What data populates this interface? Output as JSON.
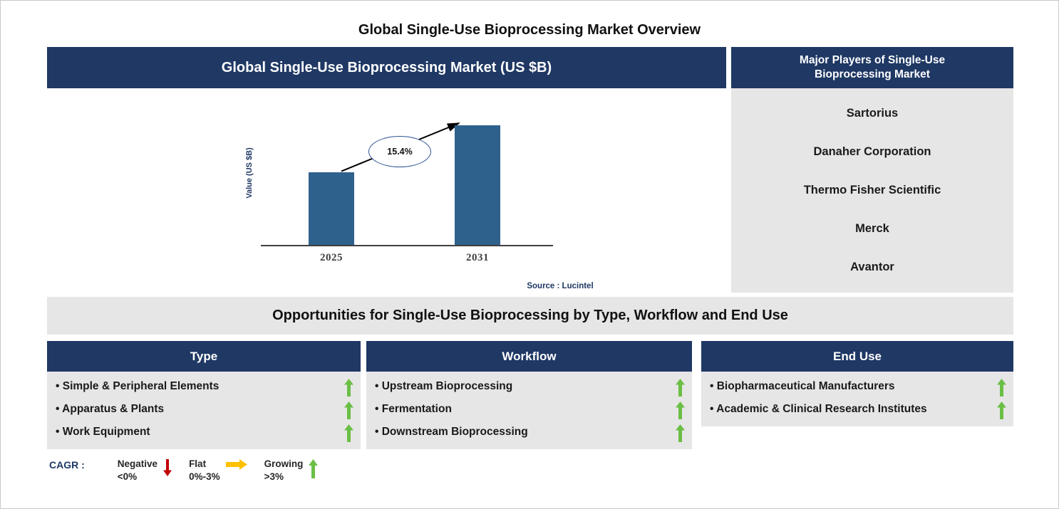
{
  "page": {
    "title": "Global Single-Use Bioprocessing Market Overview"
  },
  "market_chart": {
    "header": "Global Single-Use Bioprocessing Market (US $B)",
    "source": "Source : Lucintel"
  },
  "chart_data": {
    "type": "bar",
    "title": "Global Single-Use Bioprocessing Market (US $B)",
    "categories": [
      "2025",
      "2031"
    ],
    "values": [
      0.61,
      1.0
    ],
    "values_note": "Y-axis has no numeric tick labels; values are relative bar heights read from the chart",
    "xlabel": "",
    "ylabel": "Value (US $B)",
    "annotation": "15.4%",
    "annotation_meaning": "growth arrow label between 2025 and 2031 bars",
    "source": "Source : Lucintel",
    "bar_color": "#2F618D",
    "grid": false,
    "legend": false
  },
  "major_players": {
    "header": "Major Players of Single-Use Bioprocessing Market",
    "items": [
      "Sartorius",
      "Danaher Corporation",
      "Thermo Fisher Scientific",
      "Merck",
      "Avantor"
    ]
  },
  "opportunities": {
    "title": "Opportunities for Single-Use Bioprocessing by Type, Workflow and End Use",
    "columns": [
      {
        "header": "Type",
        "items": [
          {
            "label": "Simple & Peripheral Elements",
            "trend": "up"
          },
          {
            "label": "Apparatus & Plants",
            "trend": "up"
          },
          {
            "label": "Work Equipment",
            "trend": "up"
          }
        ]
      },
      {
        "header": "Workflow",
        "items": [
          {
            "label": "Upstream Bioprocessing",
            "trend": "up"
          },
          {
            "label": "Fermentation",
            "trend": "up"
          },
          {
            "label": "Downstream Bioprocessing",
            "trend": "up"
          }
        ]
      },
      {
        "header": "End Use",
        "items": [
          {
            "label": "Biopharmaceutical Manufacturers",
            "trend": "up"
          },
          {
            "label": "Academic & Clinical Research Institutes",
            "trend": "up"
          }
        ]
      }
    ]
  },
  "cagr_legend": {
    "label": "CAGR :",
    "items": [
      {
        "name": "Negative",
        "range": "<0%",
        "arrow": "down",
        "color": "#C00000"
      },
      {
        "name": "Flat",
        "range": "0%-3%",
        "arrow": "right",
        "color": "#FFC000"
      },
      {
        "name": "Growing",
        "range": ">3%",
        "arrow": "up",
        "color": "#6ABF45"
      }
    ]
  },
  "colors": {
    "header_navy": "#1F3864",
    "panel_gray": "#E7E6E6",
    "bar_blue": "#2F618D",
    "growing_green": "#6ABF45",
    "flat_yellow": "#FFC000",
    "negative_red": "#C00000"
  }
}
